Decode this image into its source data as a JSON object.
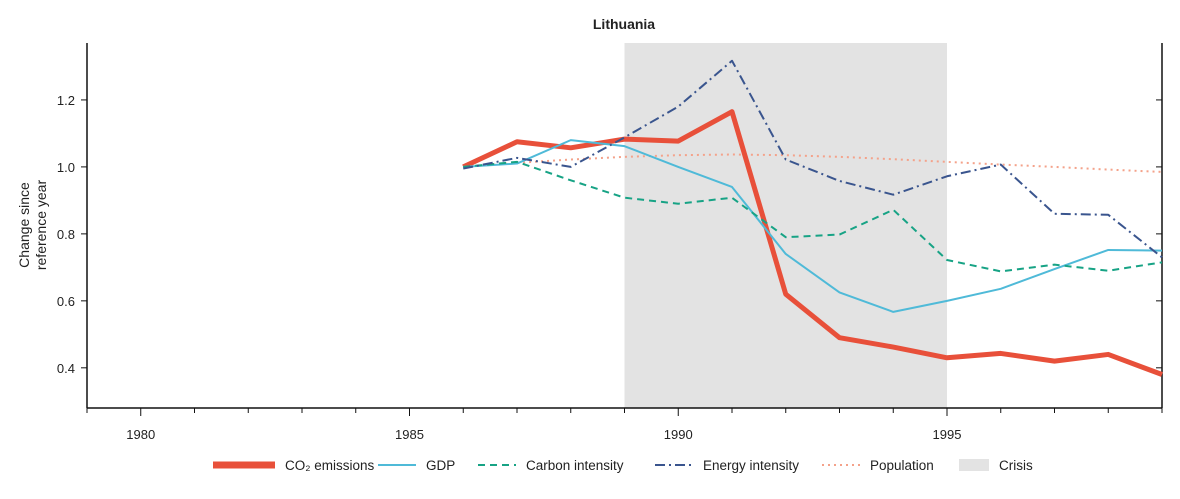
{
  "chart_data": {
    "type": "line",
    "title": "Lithuania",
    "xlabel": "",
    "ylabel": "Change since reference year",
    "ylabel_lines": [
      "Change since",
      "reference year"
    ],
    "xlim": [
      1979,
      1999
    ],
    "ylim": [
      0.28,
      1.37
    ],
    "xticks": [
      1980,
      1985,
      1990,
      1995
    ],
    "yticks": [
      0.4,
      0.6,
      0.8,
      1.0,
      1.2
    ],
    "ytick_labels": [
      "0.4",
      "0.6",
      "0.8",
      "1.0",
      "1.2"
    ],
    "grid": false,
    "legend_placement": "bottom",
    "shaded_regions": [
      {
        "name": "Crisis",
        "x": [
          1989,
          1995
        ],
        "color": "#e3e3e3"
      }
    ],
    "series": [
      {
        "name": "CO₂ emissions",
        "color": "#e8503a",
        "style": "solid-thick",
        "x": [
          1986,
          1987,
          1988,
          1989,
          1990,
          1991,
          1992,
          1993,
          1994,
          1995,
          1996,
          1997,
          1998,
          1999
        ],
        "values": [
          1.0,
          1.075,
          1.057,
          1.083,
          1.077,
          1.165,
          0.62,
          0.49,
          0.462,
          0.43,
          0.443,
          0.42,
          0.44,
          0.38
        ]
      },
      {
        "name": "GDP",
        "color": "#4fbad8",
        "style": "solid",
        "x": [
          1986,
          1987,
          1988,
          1989,
          1990,
          1991,
          1992,
          1993,
          1994,
          1995,
          1996,
          1997,
          1998,
          1999
        ],
        "values": [
          1.0,
          1.01,
          1.08,
          1.062,
          1.0,
          0.94,
          0.74,
          0.625,
          0.567,
          0.6,
          0.636,
          0.695,
          0.752,
          0.75
        ]
      },
      {
        "name": "Carbon intensity",
        "color": "#17a385",
        "style": "dashed",
        "x": [
          1986,
          1987,
          1988,
          1989,
          1990,
          1991,
          1992,
          1993,
          1994,
          1995,
          1996,
          1997,
          1998,
          1999
        ],
        "values": [
          1.0,
          1.015,
          0.96,
          0.908,
          0.89,
          0.908,
          0.79,
          0.798,
          0.872,
          0.722,
          0.688,
          0.708,
          0.69,
          0.715
        ]
      },
      {
        "name": "Energy intensity",
        "color": "#3a558e",
        "style": "dashdot",
        "x": [
          1986,
          1987,
          1988,
          1989,
          1990,
          1991,
          1992,
          1993,
          1994,
          1995,
          1996,
          1997,
          1998,
          1999
        ],
        "values": [
          0.995,
          1.027,
          1.0,
          1.088,
          1.18,
          1.317,
          1.022,
          0.958,
          0.917,
          0.972,
          1.007,
          0.86,
          0.857,
          0.73
        ]
      },
      {
        "name": "Population",
        "color": "#f4a28a",
        "style": "dotted",
        "x": [
          1986,
          1987,
          1988,
          1989,
          1990,
          1991,
          1992,
          1993,
          1994,
          1995,
          1996,
          1997,
          1998,
          1999
        ],
        "values": [
          1.0,
          1.012,
          1.022,
          1.03,
          1.035,
          1.037,
          1.035,
          1.03,
          1.023,
          1.015,
          1.007,
          1.0,
          0.992,
          0.985
        ]
      }
    ],
    "legend": [
      {
        "label": "CO₂ emissions",
        "color": "#e8503a",
        "style": "solid-thick"
      },
      {
        "label": "GDP",
        "color": "#4fbad8",
        "style": "solid"
      },
      {
        "label": "Carbon intensity",
        "color": "#17a385",
        "style": "dashed"
      },
      {
        "label": "Energy intensity",
        "color": "#3a558e",
        "style": "dashdot"
      },
      {
        "label": "Population",
        "color": "#f4a28a",
        "style": "dotted"
      },
      {
        "label": "Crisis",
        "color": "#e3e3e3",
        "style": "patch"
      }
    ]
  }
}
